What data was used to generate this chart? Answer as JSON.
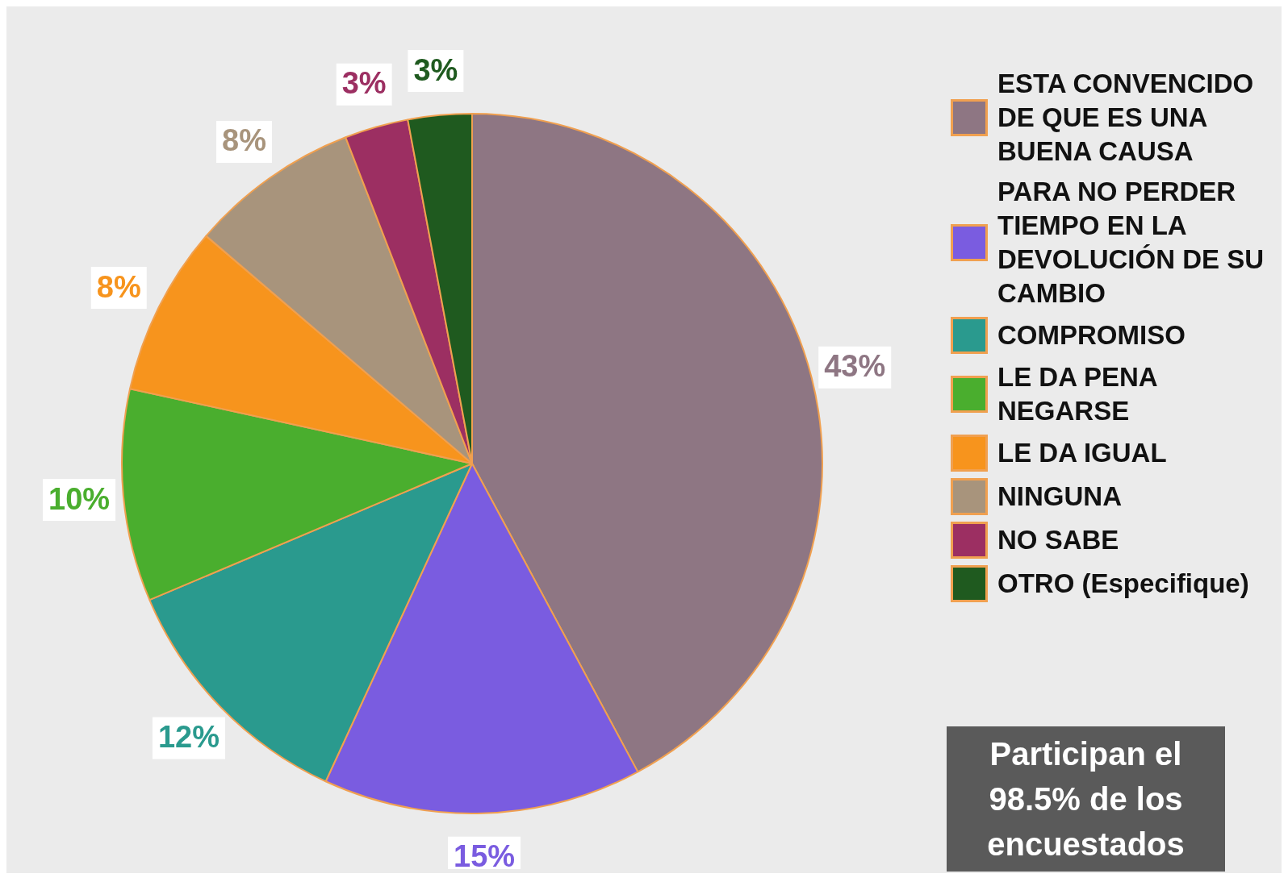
{
  "chart_data": {
    "type": "pie",
    "categories": [
      "ESTA CONVENCIDO DE QUE ES UNA BUENA CAUSA",
      "PARA NO PERDER TIEMPO EN LA DEVOLUCIÓN DE SU CAMBIO",
      "COMPROMISO",
      "LE DA PENA NEGARSE",
      "LE DA IGUAL",
      "NINGUNA",
      "NO SABE",
      "OTRO (Especifique)"
    ],
    "values": [
      43,
      15,
      12,
      10,
      8,
      8,
      3,
      3
    ],
    "colors": [
      "#8e7683",
      "#7a5ce0",
      "#2a9a8e",
      "#4aae2e",
      "#f7941d",
      "#a8947c",
      "#9c2f62",
      "#1f5a1f"
    ],
    "value_labels": [
      "43%",
      "15%",
      "12%",
      "10%",
      "8%",
      "8%",
      "3%",
      "3%"
    ],
    "legend": "right",
    "annotations": [
      "Participan el 98.5% de los encuestados"
    ]
  }
}
